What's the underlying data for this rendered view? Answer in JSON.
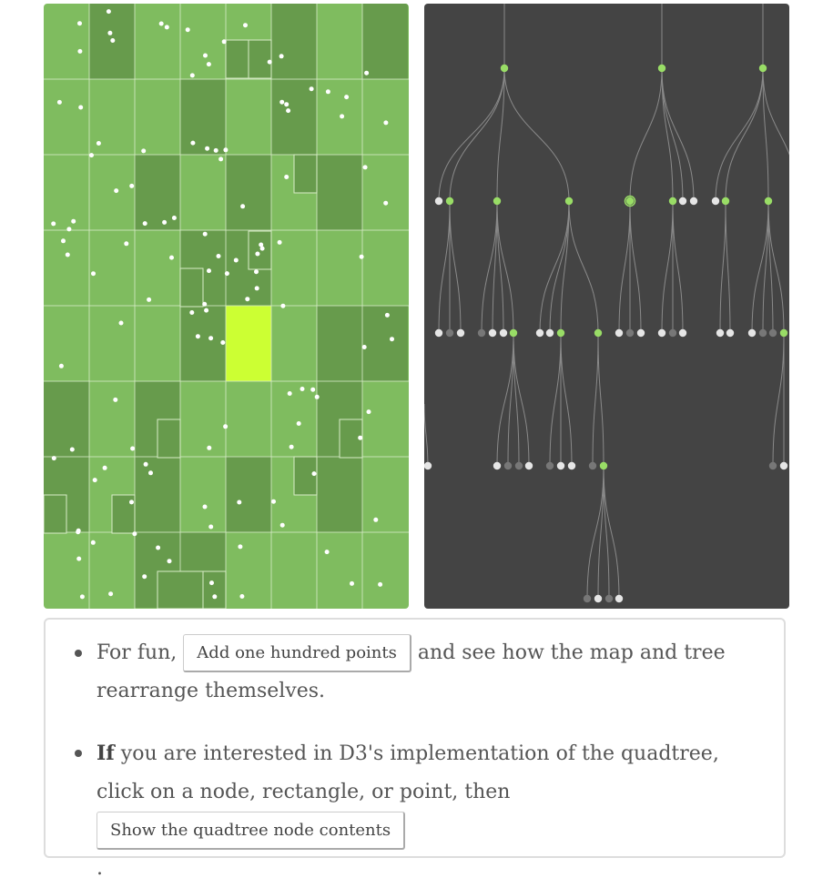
{
  "map": {
    "base_color": "#7fbc5f",
    "dark_color": "#679b4c",
    "highlight_color": "#ccff33",
    "grid_color": "#d8ecc8",
    "point_color": "#ffffff"
  },
  "tree": {
    "background": "#444444",
    "link_color": "#8a8a8a",
    "internal_node_color": "#99dd66",
    "leaf_point_color": "#e6e6e6",
    "empty_leaf_color": "#777777"
  },
  "info": {
    "item1_lead": "For fun,",
    "item1_button": "Add one hundred points",
    "item1_tail": "and see how the map and tree rearrange themselves.",
    "item2_lead_bold": "If",
    "item2_text": "you are interested in D3's implementation of the quadtree, click on a node, rectangle, or point, then",
    "item2_button": "Show the quadtree node contents",
    "item2_tail": "."
  }
}
